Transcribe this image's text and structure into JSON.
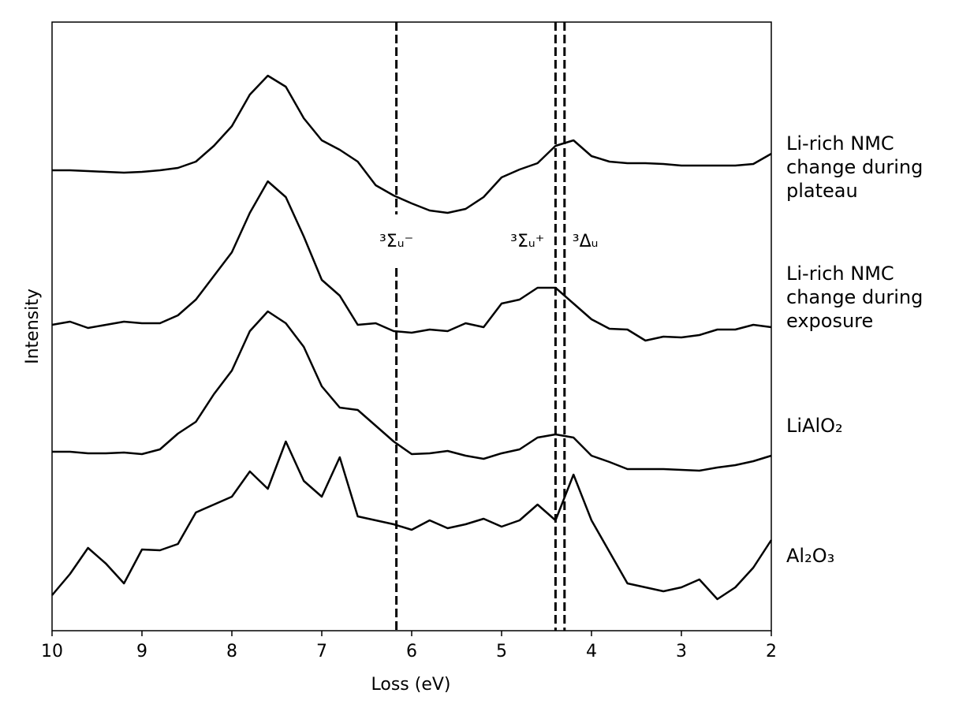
{
  "chart_data": {
    "type": "line",
    "xlabel": "Loss (eV)",
    "ylabel": "Intensity",
    "x": [
      10,
      9.8,
      9.6,
      9.4,
      9.2,
      9,
      8.8,
      8.6,
      8.4,
      8.2,
      8,
      7.8,
      7.6,
      7.4,
      7.2,
      7,
      6.8,
      6.6,
      6.4,
      6.2,
      6,
      5.8,
      5.6,
      5.4,
      5.2,
      5,
      4.8,
      4.6,
      4.4,
      4.2,
      4,
      3.8,
      3.6,
      3.4,
      3.2,
      3,
      2.8,
      2.6,
      2.4,
      2.2,
      2
    ],
    "series": [
      {
        "name": "Li-rich NMC change during plateau",
        "color": "#000000",
        "values": [
          584,
          584,
          583,
          582,
          581,
          582,
          584,
          587,
          595,
          615,
          640,
          680,
          704,
          690,
          650,
          622,
          610,
          595,
          565,
          552,
          542,
          533,
          530,
          535,
          550,
          575,
          585,
          593,
          615,
          622,
          602,
          595,
          593,
          593,
          592,
          590,
          590,
          590,
          590,
          592,
          605
        ]
      },
      {
        "name": "Li-rich NMC change during exposure",
        "color": "#000000",
        "values": [
          388,
          392,
          384,
          388,
          392,
          390,
          390,
          400,
          420,
          450,
          480,
          530,
          570,
          550,
          500,
          445,
          425,
          388,
          390,
          380,
          378,
          382,
          380,
          390,
          385,
          415,
          420,
          435,
          435,
          415,
          395,
          383,
          382,
          368,
          373,
          372,
          375,
          382,
          382,
          388,
          385
        ]
      },
      {
        "name": "LiAlO₂",
        "color": "#000000",
        "values": [
          227,
          227,
          225,
          225,
          226,
          224,
          230,
          250,
          265,
          300,
          330,
          380,
          405,
          390,
          360,
          310,
          283,
          280,
          260,
          240,
          224,
          225,
          228,
          222,
          218,
          225,
          230,
          245,
          249,
          245,
          222,
          214,
          205,
          205,
          205,
          204,
          203,
          207,
          210,
          215,
          222
        ]
      },
      {
        "name": "Al₂O₃",
        "color": "#000000",
        "values": [
          45,
          72,
          105,
          85,
          60,
          103,
          102,
          110,
          150,
          160,
          170,
          202,
          180,
          240,
          190,
          170,
          220,
          145,
          140,
          135,
          128,
          140,
          130,
          135,
          142,
          132,
          140,
          160,
          140,
          198,
          140,
          100,
          60,
          55,
          50,
          55,
          65,
          40,
          55,
          80,
          115
        ]
      }
    ],
    "xlim": [
      10,
      2
    ],
    "ylim": [
      0,
      772
    ],
    "xticks": [
      10,
      9,
      8,
      7,
      6,
      5,
      4,
      3,
      2
    ],
    "vlines": [
      {
        "x": 6.17,
        "label": "³Σᵤ⁻"
      },
      {
        "x": 4.4,
        "label": "³Σᵤ⁺"
      },
      {
        "x": 4.3,
        "label": "³Δᵤ"
      }
    ]
  }
}
